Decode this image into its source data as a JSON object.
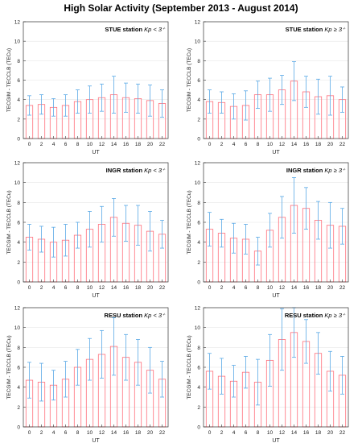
{
  "figure_title": "High Solar Activity (September 2013 - August 2014)",
  "colors": {
    "bar_edge": "#ff6f7a",
    "error_bar": "#5aa9e6",
    "axis": "#333333",
    "grid": "#e6e6e6"
  },
  "chart_data": [
    {
      "type": "bar",
      "panel": "top-left",
      "station": "STUE station",
      "kp_label": "Kp < 3⁺",
      "xlabel": "UT",
      "ylabel": "TECGIM - TECCLB (TECu)",
      "ylim": [
        0,
        12
      ],
      "yticks": [
        0,
        2,
        4,
        6,
        8,
        10,
        12
      ],
      "categories": [
        "0",
        "2",
        "4",
        "6",
        "8",
        "10",
        "12",
        "14",
        "16",
        "18",
        "20",
        "22"
      ],
      "values": [
        3.4,
        3.5,
        3.2,
        3.4,
        3.8,
        4.0,
        4.2,
        4.5,
        4.2,
        4.1,
        3.9,
        3.6
      ],
      "error_upper": [
        4.4,
        4.5,
        4.1,
        4.5,
        5.0,
        5.4,
        5.6,
        6.4,
        5.7,
        5.6,
        5.5,
        5.0
      ]
    },
    {
      "type": "bar",
      "panel": "top-right",
      "station": "STUE station",
      "kp_label": "Kp ≥ 3⁺",
      "xlabel": "UT",
      "ylabel": "TECGIM - TECCLB (TECu)",
      "ylim": [
        0,
        12
      ],
      "yticks": [
        0,
        2,
        4,
        6,
        8,
        10,
        12
      ],
      "categories": [
        "0",
        "2",
        "4",
        "6",
        "8",
        "10",
        "12",
        "14",
        "16",
        "18",
        "20",
        "22"
      ],
      "values": [
        3.8,
        3.7,
        3.3,
        3.4,
        4.5,
        4.5,
        5.0,
        5.9,
        4.8,
        4.3,
        4.4,
        4.0
      ],
      "error_upper": [
        5.0,
        4.8,
        4.6,
        4.9,
        5.9,
        6.2,
        6.5,
        7.9,
        6.4,
        6.1,
        6.4,
        5.3
      ]
    },
    {
      "type": "bar",
      "panel": "middle-left",
      "station": "INGR station",
      "kp_label": "Kp < 3⁺",
      "xlabel": "UT",
      "ylabel": "TECGIM - TECCLB (TECu)",
      "ylim": [
        0,
        12
      ],
      "yticks": [
        0,
        2,
        4,
        6,
        8,
        10,
        12
      ],
      "categories": [
        "0",
        "2",
        "4",
        "6",
        "8",
        "10",
        "12",
        "14",
        "16",
        "18",
        "20",
        "22"
      ],
      "values": [
        4.5,
        4.3,
        4.0,
        4.2,
        4.7,
        5.3,
        5.8,
        6.5,
        5.9,
        5.7,
        5.1,
        4.8
      ],
      "error_upper": [
        5.8,
        5.6,
        5.5,
        5.8,
        6.0,
        7.1,
        7.6,
        8.4,
        7.7,
        7.7,
        7.1,
        6.2
      ]
    },
    {
      "type": "bar",
      "panel": "middle-right",
      "station": "INGR station",
      "kp_label": "Kp ≥ 3⁺",
      "xlabel": "UT",
      "ylabel": "TECGIM - TECCLB (TECu)",
      "ylim": [
        0,
        12
      ],
      "yticks": [
        0,
        2,
        4,
        6,
        8,
        10,
        12
      ],
      "categories": [
        "0",
        "2",
        "4",
        "6",
        "8",
        "10",
        "12",
        "14",
        "16",
        "18",
        "20",
        "22"
      ],
      "values": [
        5.3,
        4.9,
        4.4,
        4.3,
        3.1,
        5.2,
        6.5,
        7.7,
        7.4,
        6.2,
        5.7,
        5.6
      ],
      "error_upper": [
        7.0,
        6.3,
        5.9,
        5.8,
        4.5,
        6.9,
        8.6,
        10.5,
        9.5,
        8.1,
        8.0,
        7.4
      ]
    },
    {
      "type": "bar",
      "panel": "bottom-left",
      "station": "RESU station",
      "kp_label": "Kp < 3⁺",
      "xlabel": "UT",
      "ylabel": "TECGIM - TECCLB (TECu)",
      "ylim": [
        0,
        12
      ],
      "yticks": [
        0,
        2,
        4,
        6,
        8,
        10,
        12
      ],
      "categories": [
        "0",
        "2",
        "4",
        "6",
        "8",
        "10",
        "12",
        "14",
        "16",
        "18",
        "20",
        "22"
      ],
      "values": [
        4.7,
        4.5,
        4.2,
        4.8,
        6.0,
        6.8,
        7.3,
        8.1,
        7.0,
        6.5,
        5.7,
        4.8
      ],
      "error_upper": [
        6.5,
        6.4,
        5.7,
        6.6,
        7.8,
        8.9,
        9.7,
        11.0,
        9.3,
        8.8,
        8.0,
        6.6
      ]
    },
    {
      "type": "bar",
      "panel": "bottom-right",
      "station": "RESU station",
      "kp_label": "Kp ≥ 3⁺",
      "xlabel": "UT",
      "ylabel": "TECGIM - TECCLB (TECu)",
      "ylim": [
        0,
        12
      ],
      "yticks": [
        0,
        2,
        4,
        6,
        8,
        10,
        12
      ],
      "categories": [
        "0",
        "2",
        "4",
        "6",
        "8",
        "10",
        "12",
        "14",
        "16",
        "18",
        "20",
        "22"
      ],
      "values": [
        5.6,
        5.1,
        4.6,
        5.5,
        4.5,
        6.7,
        8.8,
        9.5,
        8.6,
        7.4,
        5.6,
        5.2
      ],
      "error_upper": [
        7.4,
        6.9,
        6.2,
        7.1,
        6.8,
        9.3,
        11.9,
        12.0,
        10.8,
        9.5,
        7.6,
        7.1
      ]
    }
  ]
}
